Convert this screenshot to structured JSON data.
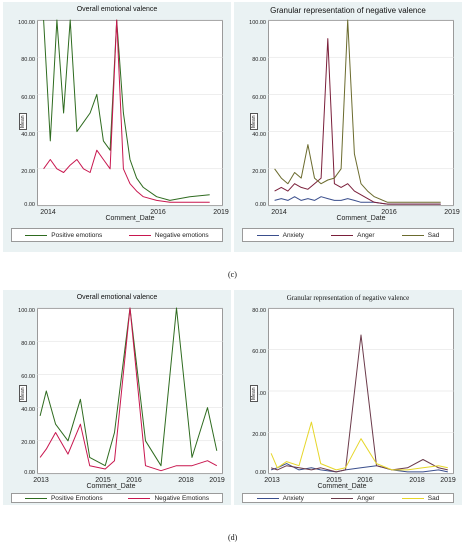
{
  "captions": {
    "c": "(c)",
    "d": "(d)"
  },
  "chart_data": [
    {
      "id": "c-left",
      "type": "line",
      "title": "Overall emotional valence",
      "xlabel": "Comment_Date",
      "ylabel": "Mean",
      "yticks": [
        "0.00",
        "20.00",
        "40.00",
        "60.00",
        "80.00",
        "100.00"
      ],
      "xticks": [
        "2014",
        "2016",
        "2019"
      ],
      "xlim": [
        2013.6,
        2019.2
      ],
      "ylim": [
        0,
        100
      ],
      "x": [
        2013.8,
        2014.0,
        2014.2,
        2014.4,
        2014.6,
        2014.8,
        2015.0,
        2015.2,
        2015.4,
        2015.6,
        2015.8,
        2016.0,
        2016.2,
        2016.4,
        2016.6,
        2016.8,
        2017.2,
        2017.6,
        2018.2,
        2018.8
      ],
      "series": [
        {
          "name": "Positive emotions",
          "color": "#2e6b1f",
          "values": [
            100,
            35,
            100,
            50,
            100,
            40,
            45,
            50,
            60,
            35,
            30,
            100,
            50,
            25,
            15,
            10,
            5,
            3,
            5,
            6
          ]
        },
        {
          "name": "Negative emotions",
          "color": "#c8174f",
          "values": [
            20,
            25,
            20,
            18,
            22,
            25,
            20,
            18,
            30,
            25,
            20,
            100,
            20,
            12,
            8,
            5,
            3,
            2,
            2,
            2
          ]
        }
      ],
      "legend": "bottom"
    },
    {
      "id": "c-right",
      "type": "line",
      "title": "Granular representation of negative valence",
      "xlabel": "Comment_Date",
      "ylabel": "Mean",
      "yticks": [
        "0.00",
        "20.00",
        "40.00",
        "60.00",
        "80.00",
        "100.00"
      ],
      "xticks": [
        "2014",
        "2016",
        "2019"
      ],
      "xlim": [
        2013.6,
        2019.2
      ],
      "ylim": [
        0,
        100
      ],
      "x": [
        2013.8,
        2014.0,
        2014.2,
        2014.4,
        2014.6,
        2014.8,
        2015.0,
        2015.2,
        2015.4,
        2015.6,
        2015.8,
        2016.0,
        2016.2,
        2016.4,
        2016.6,
        2016.8,
        2017.2,
        2017.6,
        2018.2,
        2018.8
      ],
      "series": [
        {
          "name": "Anxiety",
          "color": "#3a4e8c",
          "values": [
            3,
            4,
            3,
            5,
            3,
            4,
            3,
            5,
            4,
            3,
            3,
            4,
            3,
            2,
            2,
            2,
            1,
            1,
            1,
            1
          ]
        },
        {
          "name": "Anger",
          "color": "#7a1f3a",
          "values": [
            8,
            10,
            8,
            12,
            10,
            9,
            12,
            15,
            90,
            12,
            10,
            12,
            8,
            6,
            4,
            2,
            1,
            1,
            1,
            1
          ]
        },
        {
          "name": "Sad",
          "color": "#6b6b2e",
          "values": [
            20,
            15,
            12,
            18,
            15,
            33,
            15,
            12,
            14,
            15,
            20,
            100,
            28,
            12,
            8,
            5,
            2,
            2,
            2,
            2
          ]
        }
      ],
      "legend": "bottom"
    },
    {
      "id": "d-left",
      "type": "line",
      "title": "Overall emotional valence",
      "xlabel": "Comment_Date",
      "ylabel": "Mean",
      "yticks": [
        "0.00",
        "20.00",
        "40.00",
        "60.00",
        "80.00",
        "100.00"
      ],
      "xticks": [
        "2013",
        "2015",
        "2016",
        "2018",
        "2019"
      ],
      "xlim": [
        2013,
        2019
      ],
      "ylim": [
        0,
        100
      ],
      "x": [
        2013.1,
        2013.3,
        2013.6,
        2014.0,
        2014.4,
        2014.7,
        2015.2,
        2015.5,
        2016.0,
        2016.5,
        2017.0,
        2017.5,
        2018.0,
        2018.5,
        2018.8
      ],
      "series": [
        {
          "name": "Positive Emotions",
          "color": "#2e6b1f",
          "values": [
            35,
            50,
            30,
            20,
            45,
            10,
            5,
            25,
            100,
            20,
            5,
            100,
            10,
            40,
            14
          ]
        },
        {
          "name": "Negative Emotions",
          "color": "#c8174f",
          "values": [
            10,
            15,
            25,
            12,
            30,
            5,
            3,
            8,
            100,
            5,
            2,
            5,
            5,
            8,
            5
          ]
        }
      ],
      "legend": "bottom"
    },
    {
      "id": "d-right",
      "type": "line",
      "title": "Granular representation of negative valence",
      "xlabel": "Comment_Date",
      "ylabel": "Mean",
      "yticks": [
        "0.00",
        "20.00",
        "40.00",
        "60.00",
        "80.00"
      ],
      "xticks": [
        "2013",
        "2015",
        "2016",
        "2018",
        "2019"
      ],
      "xlim": [
        2013,
        2019
      ],
      "ylim": [
        0,
        80
      ],
      "x": [
        2013.1,
        2013.3,
        2013.6,
        2014.0,
        2014.4,
        2014.7,
        2015.2,
        2015.5,
        2016.0,
        2016.5,
        2017.0,
        2017.5,
        2018.0,
        2018.5,
        2018.8
      ],
      "series": [
        {
          "name": "Anxiety",
          "color": "#3a4e8c",
          "values": [
            2,
            3,
            5,
            2,
            3,
            2,
            1,
            2,
            3,
            4,
            2,
            1,
            1,
            2,
            1
          ]
        },
        {
          "name": "Anger",
          "color": "#6b3a4a",
          "values": [
            3,
            2,
            4,
            3,
            2,
            3,
            1,
            2,
            67,
            4,
            2,
            3,
            7,
            3,
            2
          ]
        },
        {
          "name": "Sad",
          "color": "#e6d62a",
          "values": [
            10,
            3,
            6,
            4,
            25,
            5,
            2,
            3,
            17,
            5,
            2,
            2,
            3,
            4,
            3
          ]
        }
      ],
      "legend": "bottom"
    }
  ]
}
